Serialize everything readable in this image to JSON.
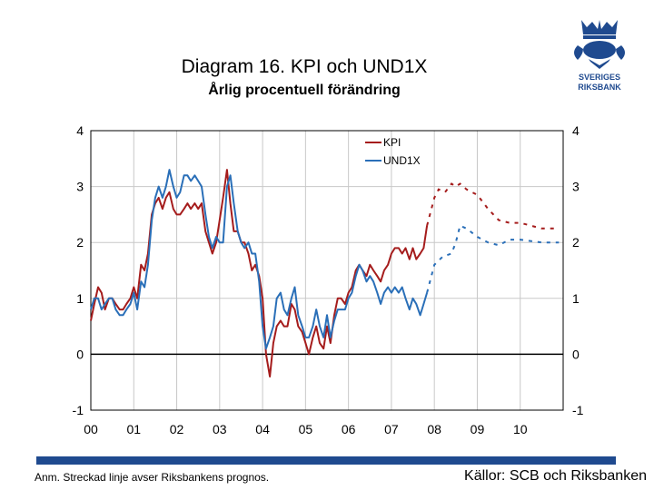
{
  "title": "Diagram 16. KPI och UND1X",
  "subtitle": "Årlig procentuell förändring",
  "logo": {
    "line1": "SVERIGES",
    "line2": "RIKSBANK",
    "color": "#1f4a8f"
  },
  "note": "Anm. Streckad linje avser Riksbankens prognos.",
  "source": "Källor: SCB och Riksbanken",
  "chart_data": {
    "type": "line",
    "ylim": [
      -1,
      4
    ],
    "yticks": [
      "-1",
      "0",
      "1",
      "2",
      "3",
      "4"
    ],
    "xlim": [
      2000,
      2011
    ],
    "xticks": [
      "00",
      "01",
      "02",
      "03",
      "04",
      "05",
      "06",
      "07",
      "08",
      "09",
      "10"
    ],
    "grid": true,
    "legend": "top-right",
    "series": [
      {
        "name": "KPI",
        "color": "#a51c1c",
        "actual": [
          [
            2000.0,
            0.6
          ],
          [
            2000.08,
            0.9
          ],
          [
            2000.17,
            1.2
          ],
          [
            2000.25,
            1.1
          ],
          [
            2000.33,
            0.8
          ],
          [
            2000.42,
            1.0
          ],
          [
            2000.5,
            1.0
          ],
          [
            2000.58,
            0.9
          ],
          [
            2000.67,
            0.8
          ],
          [
            2000.75,
            0.8
          ],
          [
            2000.83,
            0.9
          ],
          [
            2000.92,
            1.0
          ],
          [
            2001.0,
            1.2
          ],
          [
            2001.08,
            1.0
          ],
          [
            2001.17,
            1.6
          ],
          [
            2001.25,
            1.5
          ],
          [
            2001.33,
            1.8
          ],
          [
            2001.42,
            2.5
          ],
          [
            2001.5,
            2.7
          ],
          [
            2001.58,
            2.8
          ],
          [
            2001.67,
            2.6
          ],
          [
            2001.75,
            2.8
          ],
          [
            2001.83,
            2.9
          ],
          [
            2001.92,
            2.6
          ],
          [
            2002.0,
            2.5
          ],
          [
            2002.08,
            2.5
          ],
          [
            2002.17,
            2.6
          ],
          [
            2002.25,
            2.7
          ],
          [
            2002.33,
            2.6
          ],
          [
            2002.42,
            2.7
          ],
          [
            2002.5,
            2.6
          ],
          [
            2002.58,
            2.7
          ],
          [
            2002.67,
            2.2
          ],
          [
            2002.75,
            2.0
          ],
          [
            2002.83,
            1.8
          ],
          [
            2002.92,
            2.0
          ],
          [
            2003.0,
            2.4
          ],
          [
            2003.08,
            2.8
          ],
          [
            2003.17,
            3.3
          ],
          [
            2003.25,
            2.7
          ],
          [
            2003.33,
            2.2
          ],
          [
            2003.42,
            2.2
          ],
          [
            2003.5,
            2.0
          ],
          [
            2003.58,
            2.0
          ],
          [
            2003.67,
            1.8
          ],
          [
            2003.75,
            1.5
          ],
          [
            2003.83,
            1.6
          ],
          [
            2003.92,
            1.4
          ],
          [
            2004.0,
            1.0
          ],
          [
            2004.08,
            0.0
          ],
          [
            2004.17,
            -0.4
          ],
          [
            2004.25,
            0.2
          ],
          [
            2004.33,
            0.5
          ],
          [
            2004.42,
            0.6
          ],
          [
            2004.5,
            0.5
          ],
          [
            2004.58,
            0.5
          ],
          [
            2004.67,
            0.9
          ],
          [
            2004.75,
            0.8
          ],
          [
            2004.83,
            0.5
          ],
          [
            2004.92,
            0.4
          ],
          [
            2005.0,
            0.2
          ],
          [
            2005.08,
            0.0
          ],
          [
            2005.17,
            0.3
          ],
          [
            2005.25,
            0.5
          ],
          [
            2005.33,
            0.2
          ],
          [
            2005.42,
            0.1
          ],
          [
            2005.5,
            0.5
          ],
          [
            2005.58,
            0.2
          ],
          [
            2005.67,
            0.7
          ],
          [
            2005.75,
            1.0
          ],
          [
            2005.83,
            1.0
          ],
          [
            2005.92,
            0.9
          ],
          [
            2006.0,
            1.1
          ],
          [
            2006.08,
            1.2
          ],
          [
            2006.17,
            1.5
          ],
          [
            2006.25,
            1.6
          ],
          [
            2006.33,
            1.5
          ],
          [
            2006.42,
            1.4
          ],
          [
            2006.5,
            1.6
          ],
          [
            2006.58,
            1.5
          ],
          [
            2006.67,
            1.4
          ],
          [
            2006.75,
            1.3
          ],
          [
            2006.83,
            1.5
          ],
          [
            2006.92,
            1.6
          ],
          [
            2007.0,
            1.8
          ],
          [
            2007.08,
            1.9
          ],
          [
            2007.17,
            1.9
          ],
          [
            2007.25,
            1.8
          ],
          [
            2007.33,
            1.9
          ],
          [
            2007.42,
            1.7
          ],
          [
            2007.5,
            1.9
          ],
          [
            2007.58,
            1.7
          ],
          [
            2007.67,
            1.8
          ],
          [
            2007.75,
            1.9
          ],
          [
            2007.83,
            2.3
          ]
        ],
        "forecast": [
          [
            2007.83,
            2.3
          ],
          [
            2008.0,
            2.8
          ],
          [
            2008.1,
            2.95
          ],
          [
            2008.25,
            2.9
          ],
          [
            2008.4,
            3.05
          ],
          [
            2008.5,
            3.0
          ],
          [
            2008.6,
            3.05
          ],
          [
            2008.75,
            2.95
          ],
          [
            2009.0,
            2.85
          ],
          [
            2009.25,
            2.6
          ],
          [
            2009.5,
            2.4
          ],
          [
            2009.75,
            2.35
          ],
          [
            2010.0,
            2.35
          ],
          [
            2010.5,
            2.25
          ],
          [
            2010.9,
            2.25
          ]
        ]
      },
      {
        "name": "UND1X",
        "color": "#2a6fb8",
        "actual": [
          [
            2000.0,
            0.8
          ],
          [
            2000.08,
            1.0
          ],
          [
            2000.17,
            1.0
          ],
          [
            2000.25,
            0.8
          ],
          [
            2000.33,
            0.9
          ],
          [
            2000.42,
            1.0
          ],
          [
            2000.5,
            1.0
          ],
          [
            2000.58,
            0.8
          ],
          [
            2000.67,
            0.7
          ],
          [
            2000.75,
            0.7
          ],
          [
            2000.83,
            0.8
          ],
          [
            2000.92,
            0.9
          ],
          [
            2001.0,
            1.1
          ],
          [
            2001.08,
            0.8
          ],
          [
            2001.17,
            1.3
          ],
          [
            2001.25,
            1.2
          ],
          [
            2001.33,
            1.6
          ],
          [
            2001.42,
            2.4
          ],
          [
            2001.5,
            2.8
          ],
          [
            2001.58,
            3.0
          ],
          [
            2001.67,
            2.8
          ],
          [
            2001.75,
            3.0
          ],
          [
            2001.83,
            3.3
          ],
          [
            2001.92,
            3.0
          ],
          [
            2002.0,
            2.8
          ],
          [
            2002.08,
            2.9
          ],
          [
            2002.17,
            3.2
          ],
          [
            2002.25,
            3.2
          ],
          [
            2002.33,
            3.1
          ],
          [
            2002.42,
            3.2
          ],
          [
            2002.5,
            3.1
          ],
          [
            2002.58,
            3.0
          ],
          [
            2002.67,
            2.5
          ],
          [
            2002.75,
            2.1
          ],
          [
            2002.83,
            1.9
          ],
          [
            2002.92,
            2.1
          ],
          [
            2003.0,
            2.0
          ],
          [
            2003.08,
            2.0
          ],
          [
            2003.17,
            3.0
          ],
          [
            2003.25,
            3.2
          ],
          [
            2003.33,
            2.7
          ],
          [
            2003.42,
            2.2
          ],
          [
            2003.5,
            2.0
          ],
          [
            2003.58,
            1.9
          ],
          [
            2003.67,
            2.0
          ],
          [
            2003.75,
            1.8
          ],
          [
            2003.83,
            1.8
          ],
          [
            2003.92,
            1.3
          ],
          [
            2004.0,
            0.5
          ],
          [
            2004.08,
            0.1
          ],
          [
            2004.17,
            0.3
          ],
          [
            2004.25,
            0.5
          ],
          [
            2004.33,
            1.0
          ],
          [
            2004.42,
            1.1
          ],
          [
            2004.5,
            0.8
          ],
          [
            2004.58,
            0.7
          ],
          [
            2004.67,
            1.0
          ],
          [
            2004.75,
            1.2
          ],
          [
            2004.83,
            0.7
          ],
          [
            2004.92,
            0.5
          ],
          [
            2005.0,
            0.3
          ],
          [
            2005.08,
            0.3
          ],
          [
            2005.17,
            0.5
          ],
          [
            2005.25,
            0.8
          ],
          [
            2005.33,
            0.5
          ],
          [
            2005.42,
            0.3
          ],
          [
            2005.5,
            0.7
          ],
          [
            2005.58,
            0.3
          ],
          [
            2005.67,
            0.6
          ],
          [
            2005.75,
            0.8
          ],
          [
            2005.83,
            0.8
          ],
          [
            2005.92,
            0.8
          ],
          [
            2006.0,
            1.0
          ],
          [
            2006.08,
            1.1
          ],
          [
            2006.17,
            1.4
          ],
          [
            2006.25,
            1.6
          ],
          [
            2006.33,
            1.5
          ],
          [
            2006.42,
            1.3
          ],
          [
            2006.5,
            1.4
          ],
          [
            2006.58,
            1.3
          ],
          [
            2006.67,
            1.1
          ],
          [
            2006.75,
            0.9
          ],
          [
            2006.83,
            1.1
          ],
          [
            2006.92,
            1.2
          ],
          [
            2007.0,
            1.1
          ],
          [
            2007.08,
            1.2
          ],
          [
            2007.17,
            1.1
          ],
          [
            2007.25,
            1.2
          ],
          [
            2007.33,
            1.0
          ],
          [
            2007.42,
            0.8
          ],
          [
            2007.5,
            1.0
          ],
          [
            2007.58,
            0.9
          ],
          [
            2007.67,
            0.7
          ],
          [
            2007.75,
            0.9
          ],
          [
            2007.83,
            1.1
          ]
        ],
        "forecast": [
          [
            2007.83,
            1.1
          ],
          [
            2008.0,
            1.6
          ],
          [
            2008.2,
            1.75
          ],
          [
            2008.4,
            1.8
          ],
          [
            2008.5,
            2.0
          ],
          [
            2008.6,
            2.3
          ],
          [
            2008.75,
            2.25
          ],
          [
            2009.0,
            2.1
          ],
          [
            2009.25,
            2.0
          ],
          [
            2009.5,
            1.95
          ],
          [
            2009.75,
            2.05
          ],
          [
            2010.0,
            2.05
          ],
          [
            2010.5,
            2.0
          ],
          [
            2010.9,
            2.0
          ]
        ]
      }
    ]
  }
}
